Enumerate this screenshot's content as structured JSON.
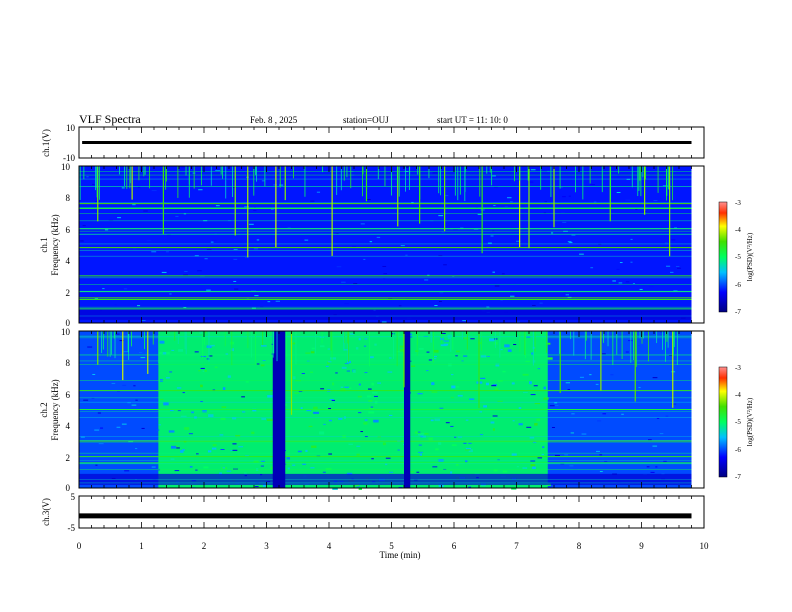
{
  "header": {
    "title": "VLF Spectra",
    "date": "Feb. 8 , 2025",
    "station": "station=OUJ",
    "start_ut": "start UT =  11: 10: 0"
  },
  "chart_data": {
    "type": "heatmap",
    "x_axis": {
      "label": "Time (min)",
      "lim": [
        0,
        10
      ],
      "ticks": [
        "0",
        "1",
        "2",
        "3",
        "4",
        "5",
        "6",
        "7",
        "8",
        "9",
        "10"
      ]
    },
    "data_end_min": 9.8,
    "panels": [
      {
        "id": "ch1-waveform",
        "ylabel": "ch.1(V)",
        "ylim": [
          -10,
          10
        ],
        "tick_labels": [
          "10",
          "-10"
        ],
        "trace_level": 0,
        "trace_width": "thin"
      },
      {
        "id": "ch1-spectrogram",
        "ylabel_1": "ch.1",
        "ylabel_2": "Frequency (kHz)",
        "ylim": [
          0,
          10
        ],
        "tick_labels": [
          "0",
          "2",
          "4",
          "6",
          "8",
          "10"
        ],
        "colorbar": {
          "label": "log(PSD)(V²/Hz)",
          "range": [
            -7,
            -3
          ],
          "ticks": [
            "-3",
            "-4",
            "-5",
            "-6",
            "-7"
          ]
        },
        "background_level": 0.2,
        "bright_bands_khz": [
          0.9,
          1.5,
          1.6,
          2.0,
          3.0,
          4.8,
          6.0,
          7.3,
          7.6
        ],
        "sferic_times_min": [
          0.3,
          0.85,
          1.35,
          2.5,
          2.7,
          3.15,
          3.3,
          4.05,
          4.6,
          5.1,
          5.45,
          5.85,
          6.45,
          7.05,
          7.2,
          7.6,
          8.5,
          9.05,
          9.45
        ]
      },
      {
        "id": "ch2-spectrogram",
        "ylabel_1": "ch.2",
        "ylabel_2": "Frequency (kHz)",
        "ylim": [
          0,
          10
        ],
        "tick_labels": [
          "0",
          "2",
          "4",
          "6",
          "8",
          "10"
        ],
        "colorbar": {
          "label": "log(PSD)(V²/Hz)",
          "range": [
            -7,
            -3
          ],
          "ticks": [
            "-3",
            "-4",
            "-5",
            "-6",
            "-7"
          ]
        },
        "background_level": 0.25,
        "noise_burst_min": [
          1.27,
          7.5
        ],
        "noise_burst_level": 0.5,
        "quiet_gaps_min": [
          [
            3.1,
            3.3
          ],
          [
            5.2,
            5.3
          ]
        ],
        "bright_bands_khz": [
          1.6,
          2.0,
          3.0,
          5.0,
          6.2
        ],
        "sferic_times_min": [
          0.3,
          0.7,
          1.1,
          3.4,
          5.2,
          6.4,
          7.7,
          8.35,
          8.9,
          9.5
        ]
      },
      {
        "id": "ch3-waveform",
        "ylabel": "ch.3(V)",
        "ylim": [
          -5,
          5
        ],
        "tick_labels": [
          "5",
          "-5"
        ],
        "trace_level": -1.2,
        "trace_width": "thick"
      }
    ]
  }
}
